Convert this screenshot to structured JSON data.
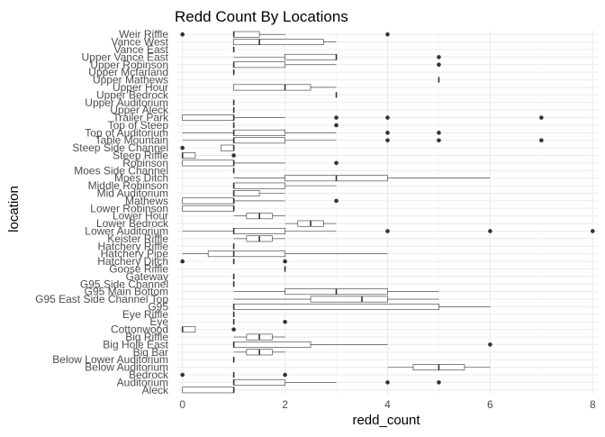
{
  "chart_data": {
    "type": "boxplot",
    "orientation": "horizontal",
    "title": "Redd Count By Locations",
    "xlabel": "redd_count",
    "ylabel": "location",
    "xlim": [
      -0.1,
      8.1
    ],
    "x_ticks": [
      0,
      2,
      4,
      6,
      8
    ],
    "grid": true,
    "legend": "none",
    "colors": {
      "box_stroke": "#333333",
      "grid_major": "#ebebeb",
      "grid_minor": "#f3f3f3",
      "text": "#4d4d4d",
      "title": "#000000"
    },
    "categories": [
      "Aleck",
      "Auditorium",
      "Bedrock",
      "Below Auditorium",
      "Below Lower Auditorium",
      "Big Bar",
      "Big Hole East",
      "Big Riffle",
      "Cottonwood",
      "Eye",
      "Eye Riffle",
      "G95",
      "G95 East Side Channel Top",
      "G95 Main Bottom",
      "G95 Side Channel",
      "Gateway",
      "Goose Riffle",
      "Hatchery Ditch",
      "Hatchery Pipe",
      "Hatchery Riffle",
      "Keister Riffle",
      "Lower Auditorium",
      "Lower Bedrock",
      "Lower Hour",
      "Lower Robinson",
      "Mathews",
      "Mid Auditorium",
      "Middle Robinson",
      "Moes Ditch",
      "Moes Side Channel",
      "Robinson",
      "Steep Riffle",
      "Steep Side Channel",
      "Table Mountain",
      "Top of Auditorium",
      "Top of Steep",
      "Trailer Park",
      "Upper Aleck",
      "Upper Auditorium",
      "Upper Bedrock",
      "Upper Hour",
      "Upper Mathews",
      "Upper Mcfarland",
      "Upper Robinson",
      "Upper Vance East",
      "Vance East",
      "Vance West",
      "Weir Riffle"
    ],
    "boxes": [
      {
        "min": 0,
        "q1": 0,
        "median": 1,
        "q3": 1,
        "max": 1,
        "outliers": []
      },
      {
        "min": 1,
        "q1": 1,
        "median": 1,
        "q3": 2,
        "max": 3,
        "outliers": [
          4,
          5
        ]
      },
      {
        "min": 1,
        "q1": 1,
        "median": 1,
        "q3": 1,
        "max": 1,
        "outliers": [
          0,
          2
        ]
      },
      {
        "min": 4,
        "q1": 4.5,
        "median": 5,
        "q3": 5.5,
        "max": 6,
        "outliers": []
      },
      {
        "min": 1,
        "q1": 1,
        "median": 1,
        "q3": 1,
        "max": 1,
        "outliers": []
      },
      {
        "min": 1,
        "q1": 1.25,
        "median": 1.5,
        "q3": 1.75,
        "max": 2,
        "outliers": []
      },
      {
        "min": 1,
        "q1": 1,
        "median": 1,
        "q3": 2.5,
        "max": 4,
        "outliers": [
          6
        ]
      },
      {
        "min": 1,
        "q1": 1.25,
        "median": 1.5,
        "q3": 1.75,
        "max": 2,
        "outliers": []
      },
      {
        "min": 0,
        "q1": 0,
        "median": 0,
        "q3": 0.25,
        "max": 0.25,
        "outliers": [
          1
        ]
      },
      {
        "min": 1,
        "q1": 1,
        "median": 1,
        "q3": 1,
        "max": 1,
        "outliers": [
          2
        ]
      },
      {
        "min": 1,
        "q1": 1,
        "median": 1,
        "q3": 1,
        "max": 1,
        "outliers": []
      },
      {
        "min": 1,
        "q1": 1,
        "median": 1,
        "q3": 5,
        "max": 6,
        "outliers": []
      },
      {
        "min": 1,
        "q1": 2.5,
        "median": 3.5,
        "q3": 4,
        "max": 5,
        "outliers": []
      },
      {
        "min": 1,
        "q1": 2,
        "median": 3,
        "q3": 4,
        "max": 5,
        "outliers": []
      },
      {
        "min": 1,
        "q1": 1,
        "median": 1,
        "q3": 1,
        "max": 1,
        "outliers": []
      },
      {
        "min": 1,
        "q1": 1,
        "median": 1,
        "q3": 1,
        "max": 1,
        "outliers": []
      },
      {
        "min": 2,
        "q1": 2,
        "median": 2,
        "q3": 2,
        "max": 2,
        "outliers": []
      },
      {
        "min": 1,
        "q1": 1,
        "median": 1,
        "q3": 1,
        "max": 1,
        "outliers": [
          0,
          2
        ]
      },
      {
        "min": 0,
        "q1": 0.5,
        "median": 1,
        "q3": 2,
        "max": 4,
        "outliers": []
      },
      {
        "min": 1,
        "q1": 1,
        "median": 1,
        "q3": 1,
        "max": 1,
        "outliers": []
      },
      {
        "min": 1,
        "q1": 1.25,
        "median": 1.5,
        "q3": 1.75,
        "max": 2,
        "outliers": []
      },
      {
        "min": 0,
        "q1": 1,
        "median": 1,
        "q3": 2,
        "max": 3,
        "outliers": [
          4,
          6,
          8
        ]
      },
      {
        "min": 2,
        "q1": 2.25,
        "median": 2.5,
        "q3": 2.75,
        "max": 3,
        "outliers": []
      },
      {
        "min": 1,
        "q1": 1.25,
        "median": 1.5,
        "q3": 1.75,
        "max": 2,
        "outliers": []
      },
      {
        "min": 0,
        "q1": 0,
        "median": 1,
        "q3": 1,
        "max": 1,
        "outliers": []
      },
      {
        "min": 0,
        "q1": 0,
        "median": 1,
        "q3": 1,
        "max": 2,
        "outliers": [
          3
        ]
      },
      {
        "min": 1,
        "q1": 1,
        "median": 1,
        "q3": 1.5,
        "max": 2,
        "outliers": []
      },
      {
        "min": 1,
        "q1": 1,
        "median": 1,
        "q3": 2,
        "max": 3,
        "outliers": []
      },
      {
        "min": 1,
        "q1": 2,
        "median": 3,
        "q3": 4,
        "max": 6,
        "outliers": []
      },
      {
        "min": 1,
        "q1": 1,
        "median": 1,
        "q3": 1,
        "max": 1,
        "outliers": []
      },
      {
        "min": 0,
        "q1": 0,
        "median": 1,
        "q3": 1,
        "max": 2,
        "outliers": [
          3
        ]
      },
      {
        "min": 0,
        "q1": 0,
        "median": 0,
        "q3": 0.25,
        "max": 0.25,
        "outliers": [
          1
        ]
      },
      {
        "min": 0.75,
        "q1": 0.75,
        "median": 1,
        "q3": 1,
        "max": 1,
        "outliers": [
          0
        ]
      },
      {
        "min": 0,
        "q1": 1,
        "median": 1,
        "q3": 2,
        "max": 3,
        "outliers": [
          4,
          5,
          7
        ]
      },
      {
        "min": 0,
        "q1": 1,
        "median": 1,
        "q3": 2,
        "max": 3,
        "outliers": [
          4,
          5
        ]
      },
      {
        "min": 1,
        "q1": 1,
        "median": 1,
        "q3": 1,
        "max": 1,
        "outliers": [
          3
        ]
      },
      {
        "min": 0,
        "q1": 0,
        "median": 1,
        "q3": 1,
        "max": 2,
        "outliers": [
          3,
          4,
          7
        ]
      },
      {
        "min": 1,
        "q1": 1,
        "median": 1,
        "q3": 1,
        "max": 1,
        "outliers": []
      },
      {
        "min": 1,
        "q1": 1,
        "median": 1,
        "q3": 1,
        "max": 1,
        "outliers": []
      },
      {
        "min": 3,
        "q1": 3,
        "median": 3,
        "q3": 3,
        "max": 3,
        "outliers": []
      },
      {
        "min": 1,
        "q1": 1,
        "median": 2,
        "q3": 2.5,
        "max": 3,
        "outliers": []
      },
      {
        "min": 5,
        "q1": 5,
        "median": 5,
        "q3": 5,
        "max": 5,
        "outliers": []
      },
      {
        "min": 1,
        "q1": 1,
        "median": 1,
        "q3": 1,
        "max": 1,
        "outliers": []
      },
      {
        "min": 1,
        "q1": 1,
        "median": 1,
        "q3": 2,
        "max": 3,
        "outliers": [
          5
        ]
      },
      {
        "min": 1,
        "q1": 2,
        "median": 3,
        "q3": 3,
        "max": 3,
        "outliers": [
          5
        ]
      },
      {
        "min": 1,
        "q1": 1,
        "median": 1,
        "q3": 1,
        "max": 1,
        "outliers": []
      },
      {
        "min": 1,
        "q1": 1,
        "median": 1.5,
        "q3": 2.75,
        "max": 3,
        "outliers": []
      },
      {
        "min": 1,
        "q1": 1,
        "median": 1,
        "q3": 1.5,
        "max": 2,
        "outliers": [
          0,
          4
        ]
      }
    ]
  }
}
